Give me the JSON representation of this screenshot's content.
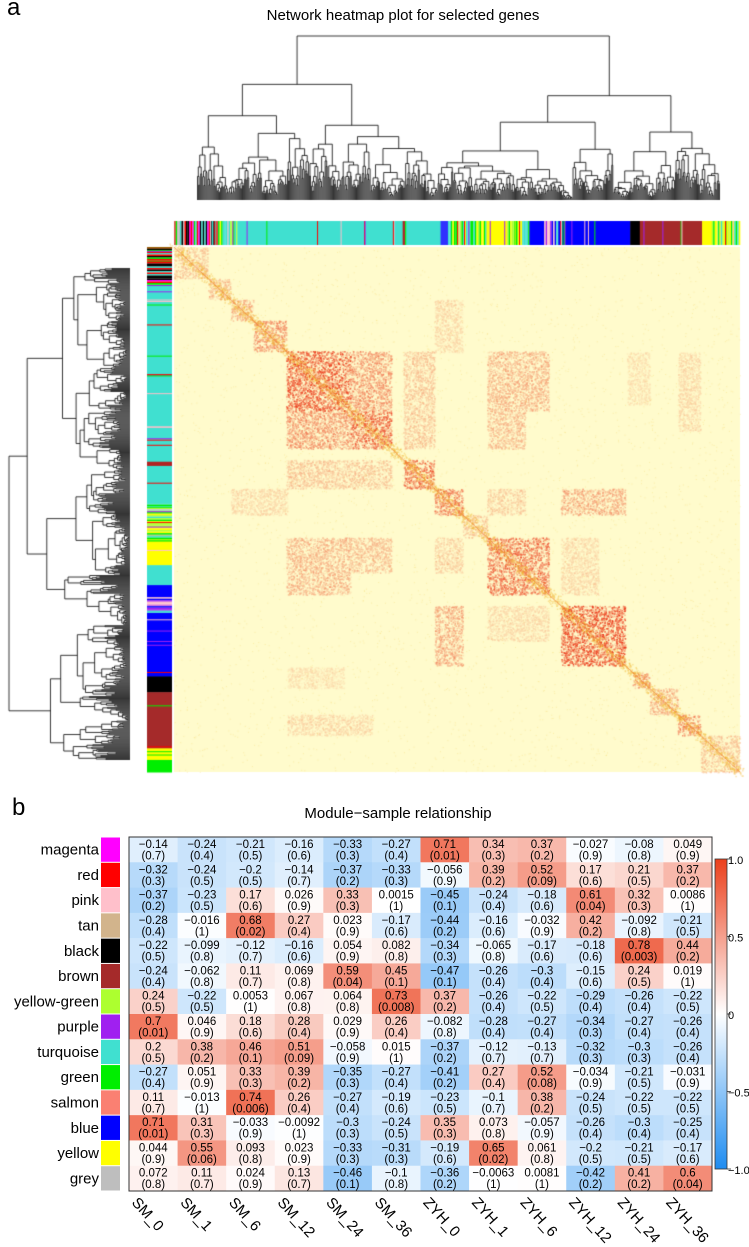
{
  "panel_a": {
    "letter": "a",
    "title": "Network heatmap plot for selected genes"
  },
  "panel_b": {
    "letter": "b",
    "title": "Module−sample relationship"
  },
  "colors": {
    "positive": "#eb401c",
    "negative": "#1e8cf0",
    "neutral": "#ffffff",
    "network_low": "#fffbcc",
    "network_high": "#e8301a"
  },
  "chart_data": {
    "type": "heatmap",
    "title": "Module−sample relationship",
    "rows": [
      "magenta",
      "red",
      "pink",
      "tan",
      "black",
      "brown",
      "yellow-green",
      "purple",
      "turquoise",
      "green",
      "salmon",
      "blue",
      "yellow",
      "grey"
    ],
    "row_colors": [
      "#ff00ff",
      "#ff0000",
      "#ffc0cb",
      "#d2b48c",
      "#000000",
      "#a52a2a",
      "#adff2f",
      "#a020f0",
      "#40e0d0",
      "#00ee00",
      "#fa8072",
      "#0000ff",
      "#ffff00",
      "#bebebe"
    ],
    "columns": [
      "SM_0",
      "SM_1",
      "SM_6",
      "SM_12",
      "SM_24",
      "SM_36",
      "ZYH_0",
      "ZYH_1",
      "ZYH_6",
      "ZYH_12",
      "ZYH_24",
      "ZYH_36"
    ],
    "values": [
      [
        -0.14,
        -0.24,
        -0.21,
        -0.16,
        -0.33,
        -0.27,
        0.71,
        0.34,
        0.37,
        -0.027,
        -0.08,
        0.049
      ],
      [
        -0.32,
        -0.24,
        -0.2,
        -0.14,
        -0.37,
        -0.33,
        -0.056,
        0.39,
        0.52,
        0.17,
        0.21,
        0.37
      ],
      [
        -0.37,
        -0.23,
        0.17,
        0.026,
        0.33,
        0.0015,
        -0.45,
        -0.24,
        -0.18,
        0.61,
        0.32,
        0.0086
      ],
      [
        -0.28,
        -0.016,
        0.68,
        0.27,
        0.023,
        -0.17,
        -0.44,
        -0.16,
        -0.032,
        0.42,
        -0.092,
        -0.21
      ],
      [
        -0.22,
        -0.099,
        -0.12,
        -0.16,
        0.054,
        0.082,
        -0.34,
        -0.065,
        -0.17,
        -0.18,
        0.78,
        0.44
      ],
      [
        -0.24,
        -0.062,
        0.11,
        0.069,
        0.59,
        0.45,
        -0.47,
        -0.26,
        -0.3,
        -0.15,
        0.24,
        0.019
      ],
      [
        0.24,
        -0.22,
        0.0053,
        0.067,
        0.064,
        0.73,
        0.37,
        -0.26,
        -0.22,
        -0.29,
        -0.26,
        -0.22
      ],
      [
        0.7,
        0.046,
        0.18,
        0.28,
        0.029,
        0.26,
        -0.082,
        -0.28,
        -0.27,
        -0.34,
        -0.27,
        -0.26
      ],
      [
        0.2,
        0.38,
        0.46,
        0.51,
        -0.058,
        0.015,
        -0.37,
        -0.12,
        -0.13,
        -0.32,
        -0.3,
        -0.26
      ],
      [
        -0.27,
        0.051,
        0.33,
        0.39,
        -0.35,
        -0.27,
        -0.41,
        0.27,
        0.52,
        -0.034,
        -0.21,
        -0.031
      ],
      [
        0.11,
        -0.013,
        0.74,
        0.26,
        -0.27,
        -0.19,
        -0.23,
        -0.1,
        0.38,
        -0.24,
        -0.22,
        -0.22
      ],
      [
        0.71,
        0.31,
        -0.033,
        -0.0092,
        -0.3,
        -0.24,
        0.35,
        0.073,
        -0.057,
        -0.26,
        -0.3,
        -0.25
      ],
      [
        0.044,
        0.55,
        0.093,
        0.023,
        -0.33,
        -0.31,
        -0.19,
        0.65,
        0.061,
        -0.2,
        -0.21,
        -0.17
      ],
      [
        0.072,
        0.11,
        0.024,
        0.13,
        -0.46,
        -0.1,
        -0.36,
        -0.0063,
        0.0081,
        -0.42,
        0.41,
        0.6
      ]
    ],
    "pvalues": [
      [
        0.7,
        0.4,
        0.5,
        0.6,
        0.3,
        0.4,
        0.01,
        0.3,
        0.2,
        0.9,
        0.8,
        0.9
      ],
      [
        0.3,
        0.5,
        0.5,
        0.7,
        0.2,
        0.3,
        0.9,
        0.2,
        0.09,
        0.6,
        0.5,
        0.2
      ],
      [
        0.2,
        0.5,
        0.6,
        0.9,
        0.3,
        1,
        0.1,
        0.4,
        0.6,
        0.04,
        0.3,
        1
      ],
      [
        0.4,
        1,
        0.02,
        0.4,
        0.9,
        0.6,
        0.2,
        0.6,
        0.9,
        0.2,
        0.8,
        0.5
      ],
      [
        0.5,
        0.8,
        0.7,
        0.6,
        0.9,
        0.8,
        0.3,
        0.8,
        0.6,
        0.6,
        0.003,
        0.2
      ],
      [
        0.4,
        0.8,
        0.7,
        0.8,
        0.04,
        0.1,
        0.1,
        0.4,
        0.4,
        0.6,
        0.5,
        1
      ],
      [
        0.5,
        0.5,
        1,
        0.8,
        0.8,
        0.008,
        0.2,
        0.4,
        0.5,
        0.4,
        0.4,
        0.5
      ],
      [
        0.01,
        0.9,
        0.6,
        0.4,
        0.9,
        0.4,
        0.8,
        0.4,
        0.4,
        0.3,
        0.4,
        0.4
      ],
      [
        0.5,
        0.2,
        0.1,
        0.09,
        0.9,
        1,
        0.2,
        0.7,
        0.7,
        0.3,
        0.3,
        0.4
      ],
      [
        0.4,
        0.9,
        0.3,
        0.2,
        0.3,
        0.4,
        0.2,
        0.4,
        0.08,
        0.9,
        0.5,
        0.9
      ],
      [
        0.7,
        1,
        0.006,
        0.4,
        0.4,
        0.6,
        0.5,
        0.7,
        0.2,
        0.5,
        0.5,
        0.5
      ],
      [
        0.01,
        0.3,
        0.9,
        1,
        0.3,
        0.5,
        0.3,
        0.8,
        0.9,
        0.4,
        0.4,
        0.4
      ],
      [
        0.9,
        0.06,
        0.8,
        0.9,
        0.3,
        0.3,
        0.6,
        0.02,
        0.8,
        0.5,
        0.5,
        0.6
      ],
      [
        0.8,
        0.7,
        0.9,
        0.7,
        0.1,
        0.8,
        0.2,
        1,
        1,
        0.2,
        0.2,
        0.04
      ]
    ],
    "value_range": [
      -1,
      1
    ],
    "colorbar_ticks": [
      {
        "value": 1,
        "label": "1.0"
      },
      {
        "value": 0.5,
        "label": "0.5"
      },
      {
        "value": 0,
        "label": "0"
      },
      {
        "value": -0.5,
        "label": "−0.5"
      },
      {
        "value": -1,
        "label": "−1.0"
      }
    ]
  }
}
